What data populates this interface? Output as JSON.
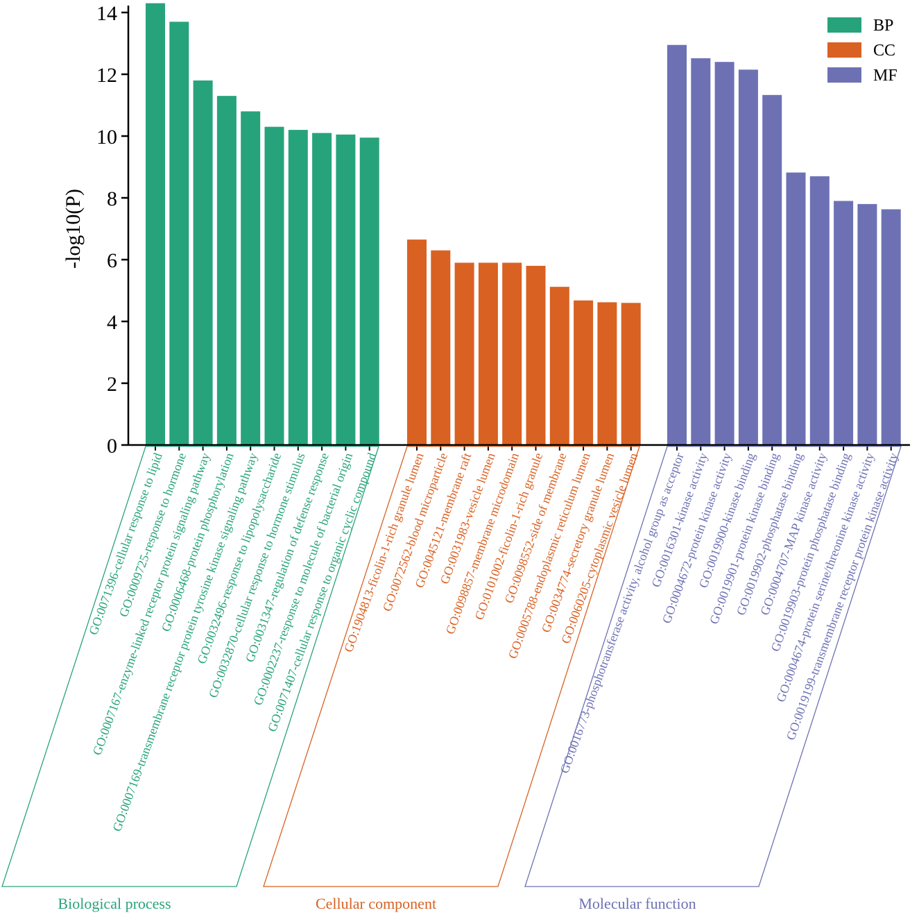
{
  "chart_data": {
    "type": "bar",
    "ylabel": "-log10(P)",
    "ylim": [
      0,
      14
    ],
    "yticks": [
      0,
      2,
      4,
      6,
      8,
      10,
      12,
      14
    ],
    "colors": {
      "BP": "#27a37c",
      "CC": "#d96122",
      "MF": "#6d71b4"
    },
    "legend": [
      "BP",
      "CC",
      "MF"
    ],
    "groups": [
      {
        "key": "BP",
        "title": "Biological process",
        "categories": [
          "GO:0071396-cellular response to lipid",
          "GO:0009725-response to hormone",
          "GO:0007167-enzyme-linked receptor protein signaling pathway",
          "GO:0006468-protein phosphorylation",
          "GO:0007169-transmembrane receptor protein tyrosine kinase signaling pathway",
          "GO:0032496-response to lipopolysaccharide",
          "GO:0032870-cellular response to hormone stimulus",
          "GO:0031347-regulation of defense response",
          "GO:0002237-response to molecule of bacterial origin",
          "GO:0071407-cellular response to organic cyclic compound"
        ],
        "values": [
          14.3,
          13.7,
          11.8,
          11.3,
          10.8,
          10.3,
          10.2,
          10.1,
          10.05,
          9.95
        ]
      },
      {
        "key": "CC",
        "title": "Cellular component",
        "categories": [
          "GO:1904813-ficolin-1-rich granule lumen",
          "GO:0072562-blood microparticle",
          "GO:0045121-membrane raft",
          "GO:0031983-vesicle lumen",
          "GO:0098857-membrane microdomain",
          "GO:0101002-ficolin-1-rich granule",
          "GO:0098552-side of membrane",
          "GO:0005788-endoplasmic reticulum lumen",
          "GO:0034774-secretory granule lumen",
          "GO:0060205-cytoplasmic vesicle lumen"
        ],
        "values": [
          6.65,
          6.3,
          5.9,
          5.9,
          5.9,
          5.8,
          5.12,
          4.68,
          4.62,
          4.6
        ]
      },
      {
        "key": "MF",
        "title": "Molecular function",
        "categories": [
          "GO:0016773-phosphotransferase activity, alcohol group as acceptor",
          "GO:0016301-kinase activity",
          "GO:0004672-protein kinase activity",
          "GO:0019900-kinase binding",
          "GO:0019901-protein kinase binding",
          "GO:0019902-phosphatase binding",
          "GO:0004707-MAP kinase activity",
          "GO:0019903-protein phosphatase binding",
          "GO:0004674-protein serine/threonine kinase activity",
          "GO:0019199-transmembrane receptor protein kinase activity"
        ],
        "values": [
          12.95,
          12.52,
          12.4,
          12.15,
          11.33,
          8.82,
          8.7,
          7.9,
          7.8,
          7.63
        ]
      }
    ]
  }
}
